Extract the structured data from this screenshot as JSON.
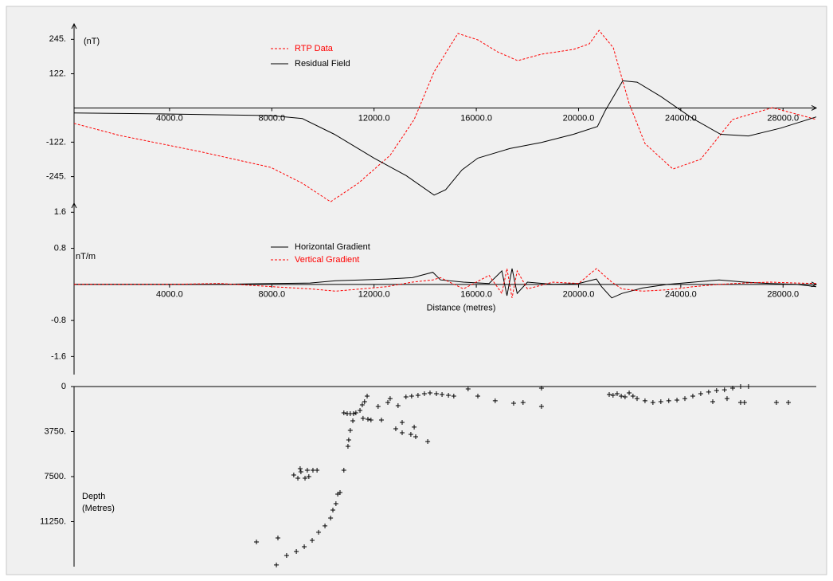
{
  "chart_data": [
    {
      "type": "line",
      "y_label": "(nT)",
      "legend": "upper-center",
      "xlim": [
        265,
        29300
      ],
      "ylim": [
        -340,
        300
      ],
      "xticks": [
        {
          "value": 4000,
          "label": "4000.0"
        },
        {
          "value": 8000,
          "label": "8000.0"
        },
        {
          "value": 12000,
          "label": "12000.0"
        },
        {
          "value": 16000,
          "label": "16000.0"
        },
        {
          "value": 20000,
          "label": "20000.0"
        },
        {
          "value": 24000,
          "label": "24000.0"
        },
        {
          "value": 28000,
          "label": "28000.0"
        }
      ],
      "yticks": [
        {
          "value": 245,
          "label": "245."
        },
        {
          "value": 122,
          "label": "122."
        },
        {
          "value": -122,
          "label": "-122."
        },
        {
          "value": -245,
          "label": "-245."
        }
      ],
      "series": [
        {
          "name": "RTP Data",
          "color": "#ff0000",
          "style": "dashed",
          "x": [
            265,
            2040,
            5160,
            7960,
            9200,
            10300,
            11380,
            12630,
            13570,
            14350,
            15280,
            16060,
            16840,
            17620,
            18550,
            19800,
            20420,
            20800,
            21360,
            21980,
            22600,
            23690,
            24780,
            26030,
            27590,
            29300
          ],
          "values": [
            -55,
            -98,
            -155,
            -212,
            -269,
            -335,
            -269,
            -169,
            -41,
            129,
            266,
            243,
            200,
            169,
            192,
            209,
            229,
            277,
            215,
            16,
            -127,
            -218,
            -183,
            -41,
            1,
            -41
          ]
        },
        {
          "name": "Residual Field",
          "color": "#000000",
          "style": "solid",
          "x": [
            265,
            3600,
            7960,
            9200,
            10450,
            12000,
            13250,
            14350,
            14800,
            15440,
            16060,
            17310,
            18550,
            19800,
            20740,
            21040,
            21730,
            22290,
            23220,
            24470,
            25560,
            26650,
            27900,
            29300
          ],
          "values": [
            -18,
            -21,
            -27,
            -38,
            -94,
            -179,
            -241,
            -311,
            -292,
            -221,
            -179,
            -145,
            -123,
            -94,
            -66,
            -10,
            97,
            92,
            41,
            -38,
            -94,
            -100,
            -72,
            -32
          ]
        }
      ]
    },
    {
      "type": "line",
      "y_label": "nT/m",
      "x_label": "Distance (metres)",
      "legend": "upper-center",
      "xlim": [
        265,
        29300
      ],
      "ylim": [
        -2.0,
        1.8
      ],
      "xticks": [
        {
          "value": 4000,
          "label": "4000.0"
        },
        {
          "value": 8000,
          "label": "8000.0"
        },
        {
          "value": 12000,
          "label": "12000.0"
        },
        {
          "value": 16000,
          "label": "16000.0"
        },
        {
          "value": 20000,
          "label": "20000.0"
        },
        {
          "value": 24000,
          "label": "24000.0"
        },
        {
          "value": 28000,
          "label": "28000.0"
        }
      ],
      "yticks": [
        1.6,
        0.8,
        -0.8,
        -1.6
      ],
      "series": [
        {
          "name": "Horizontal Gradient",
          "color": "#000000",
          "style": "solid",
          "x": [
            265,
            2000,
            4000,
            6000,
            8000,
            9500,
            10500,
            11500,
            12500,
            13500,
            14300,
            14600,
            15500,
            16500,
            17000,
            17200,
            17400,
            17600,
            18000,
            19000,
            20000,
            20700,
            20900,
            21300,
            21700,
            22500,
            23500,
            24500,
            25500,
            26500,
            27500,
            28500,
            29300
          ],
          "values": [
            0,
            0,
            0,
            0,
            0.02,
            0.03,
            0.08,
            0.1,
            0.12,
            0.15,
            0.27,
            0.1,
            0.05,
            0.02,
            0.3,
            -0.25,
            0.35,
            -0.2,
            0.05,
            0,
            0.02,
            0.12,
            -0.05,
            -0.3,
            -0.2,
            -0.08,
            0,
            0.05,
            0.1,
            0.05,
            0.02,
            0,
            -0.05
          ]
        },
        {
          "name": "Vertical Gradient",
          "color": "#ff0000",
          "style": "dashed",
          "x": [
            265,
            2000,
            4000,
            6000,
            8000,
            9500,
            10500,
            11500,
            12500,
            13500,
            14300,
            14600,
            15500,
            16500,
            17000,
            17200,
            17400,
            17600,
            18000,
            19000,
            20000,
            20700,
            20900,
            21300,
            21700,
            22500,
            23500,
            24500,
            25500,
            26500,
            27500,
            28500,
            29300
          ],
          "values": [
            0,
            0,
            0,
            0.02,
            -0.05,
            -0.1,
            -0.15,
            -0.1,
            -0.05,
            0.05,
            0.1,
            0.15,
            -0.1,
            0.2,
            -0.2,
            0.35,
            -0.3,
            0.3,
            -0.1,
            0.05,
            0.02,
            0.35,
            0.25,
            0.05,
            -0.1,
            -0.15,
            -0.12,
            -0.05,
            0,
            0.03,
            0.05,
            0.03,
            0.02
          ]
        }
      ]
    },
    {
      "type": "scatter",
      "y_label": [
        "Depth",
        "(Metres)"
      ],
      "marker": "+",
      "color": "#000000",
      "y_inverted": true,
      "xlim": [
        265,
        29300
      ],
      "ylim": [
        0,
        15000
      ],
      "yticks": [
        0,
        {
          "value": 3750,
          "label": "3750."
        },
        {
          "value": 7500,
          "label": "7500."
        },
        {
          "value": 11250,
          "label": "11250."
        }
      ],
      "x": [
        7400,
        8180,
        8240,
        8580,
        8960,
        9270,
        9580,
        9830,
        10080,
        10300,
        10390,
        10510,
        10580,
        10670,
        10820,
        8860,
        9020,
        9140,
        9300,
        9390,
        9450,
        9610,
        9770,
        9110,
        10980,
        11010,
        11070,
        11170,
        11290,
        11450,
        11540,
        11630,
        11730,
        10820,
        10950,
        11070,
        11200,
        11570,
        11760,
        11880,
        12160,
        12290,
        12540,
        12630,
        12850,
        13100,
        13100,
        13440,
        13570,
        13630,
        14100,
        12940,
        13250,
        13470,
        13720,
        13970,
        14190,
        14440,
        14660,
        14910,
        15120,
        15680,
        16060,
        16740,
        17460,
        17830,
        18550,
        18550,
        21200,
        21350,
        21510,
        21670,
        21820,
        21980,
        22130,
        22290,
        22600,
        22910,
        23220,
        23530,
        23850,
        24160,
        24470,
        24780,
        25090,
        25400,
        25710,
        26030,
        26340,
        26650,
        25250,
        25810,
        26340,
        26490,
        27740,
        28210
      ],
      "values": [
        12940,
        14860,
        12610,
        14070,
        13740,
        13340,
        12810,
        12140,
        11610,
        10950,
        10290,
        9760,
        8960,
        8830,
        6970,
        7370,
        7630,
        7100,
        7630,
        6970,
        7500,
        6970,
        6970,
        6840,
        4980,
        4450,
        3650,
        2850,
        2190,
        1990,
        1530,
        1260,
        800,
        2190,
        2260,
        2260,
        2260,
        2650,
        2720,
        2790,
        1660,
        2790,
        1330,
        1000,
        3520,
        2990,
        3850,
        3980,
        3380,
        4180,
        4580,
        1590,
        860,
        800,
        730,
        600,
        530,
        600,
        660,
        730,
        800,
        200,
        800,
        1190,
        1390,
        1330,
        130,
        1660,
        660,
        730,
        600,
        800,
        860,
        530,
        800,
        1000,
        1190,
        1330,
        1260,
        1190,
        1130,
        1000,
        800,
        600,
        460,
        330,
        270,
        130,
        0,
        0,
        1260,
        1000,
        1330,
        1330,
        1330,
        1330
      ]
    }
  ]
}
